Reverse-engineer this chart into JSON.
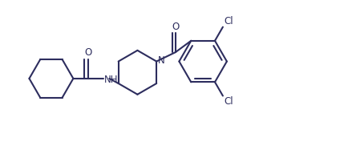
{
  "bg_color": "#ffffff",
  "line_color": "#2d2d5e",
  "lw": 1.5,
  "figw": 4.29,
  "figh": 1.92,
  "dpi": 100,
  "fs": 8.5,
  "xlim": [
    0,
    10.0
  ],
  "ylim": [
    0,
    5.0
  ]
}
